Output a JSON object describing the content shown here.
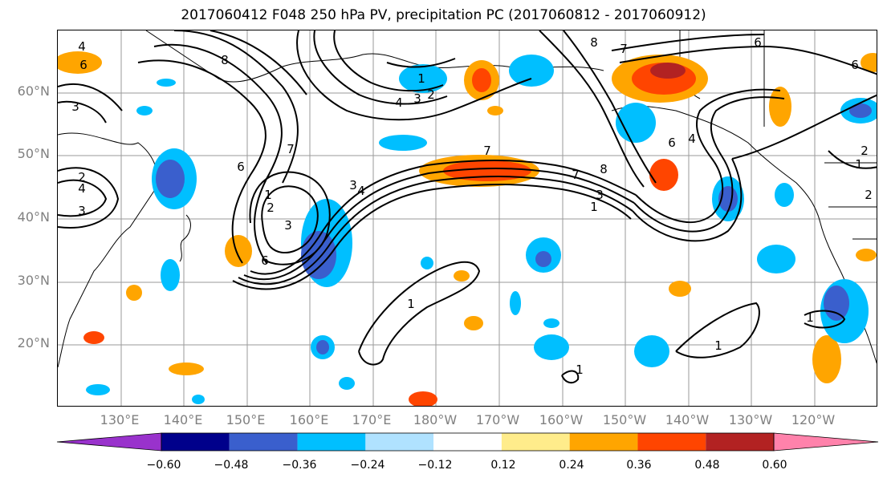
{
  "title": "2017060412 F048 250 hPa PV, precipitation PC (2017060812 - 2017060912)",
  "map": {
    "lat_labels": [
      "60°N",
      "50°N",
      "40°N",
      "30°N",
      "20°N"
    ],
    "lon_labels": [
      "130°E",
      "140°E",
      "150°E",
      "160°E",
      "170°E",
      "180°W",
      "170°W",
      "160°W",
      "150°W",
      "140°W",
      "130°W",
      "120°W"
    ],
    "contour_labels": [
      "4",
      "6",
      "3",
      "2",
      "4",
      "3",
      "1",
      "2",
      "3",
      "4",
      "8",
      "7",
      "6",
      "3",
      "2",
      "1",
      "6",
      "4",
      "3",
      "7",
      "8",
      "7",
      "6",
      "2",
      "1",
      "8",
      "6",
      "4",
      "7",
      "3",
      "1",
      "1",
      "1",
      "1",
      "1",
      "2",
      "6"
    ]
  },
  "colorbar": {
    "tick_labels": [
      "−0.60",
      "−0.48",
      "−0.36",
      "−0.24",
      "−0.12",
      "0.12",
      "0.24",
      "0.36",
      "0.48",
      "0.60"
    ],
    "colors": [
      "#9932cc",
      "#00008b",
      "#3a5fcd",
      "#00bfff",
      "#b0e2ff",
      "#ffffff",
      "#ffec8b",
      "#ffa500",
      "#ff4500",
      "#b22222",
      "#ff82ab"
    ]
  }
}
